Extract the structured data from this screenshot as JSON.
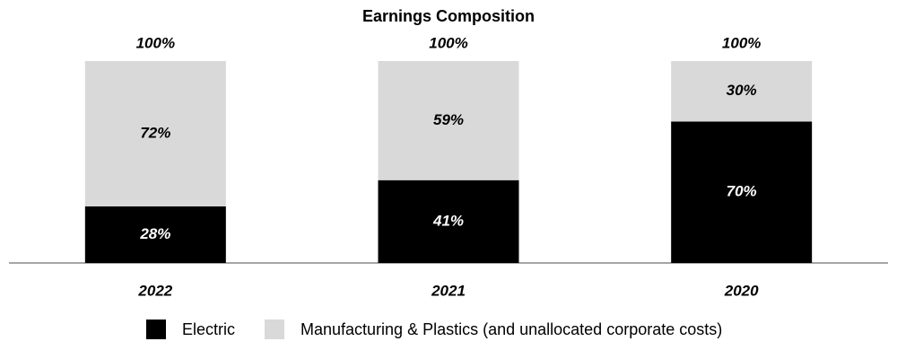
{
  "chart_data": {
    "type": "stacked_bar",
    "title": "Earnings Composition",
    "categories": [
      "2022",
      "2021",
      "2020"
    ],
    "series": [
      {
        "name": "Electric",
        "color": "#000000",
        "values": [
          28,
          41,
          70
        ],
        "value_labels": [
          "28%",
          "41%",
          "70%"
        ]
      },
      {
        "name": "Manufacturing & Plastics (and unallocated corporate costs)",
        "color": "#d9d9d9",
        "values": [
          72,
          59,
          30
        ],
        "value_labels": [
          "72%",
          "59%",
          "30%"
        ]
      }
    ],
    "totals": [
      100,
      100,
      100
    ],
    "total_labels": [
      "100%",
      "100%",
      "100%"
    ],
    "ylim": [
      0,
      100
    ],
    "grid": false
  }
}
